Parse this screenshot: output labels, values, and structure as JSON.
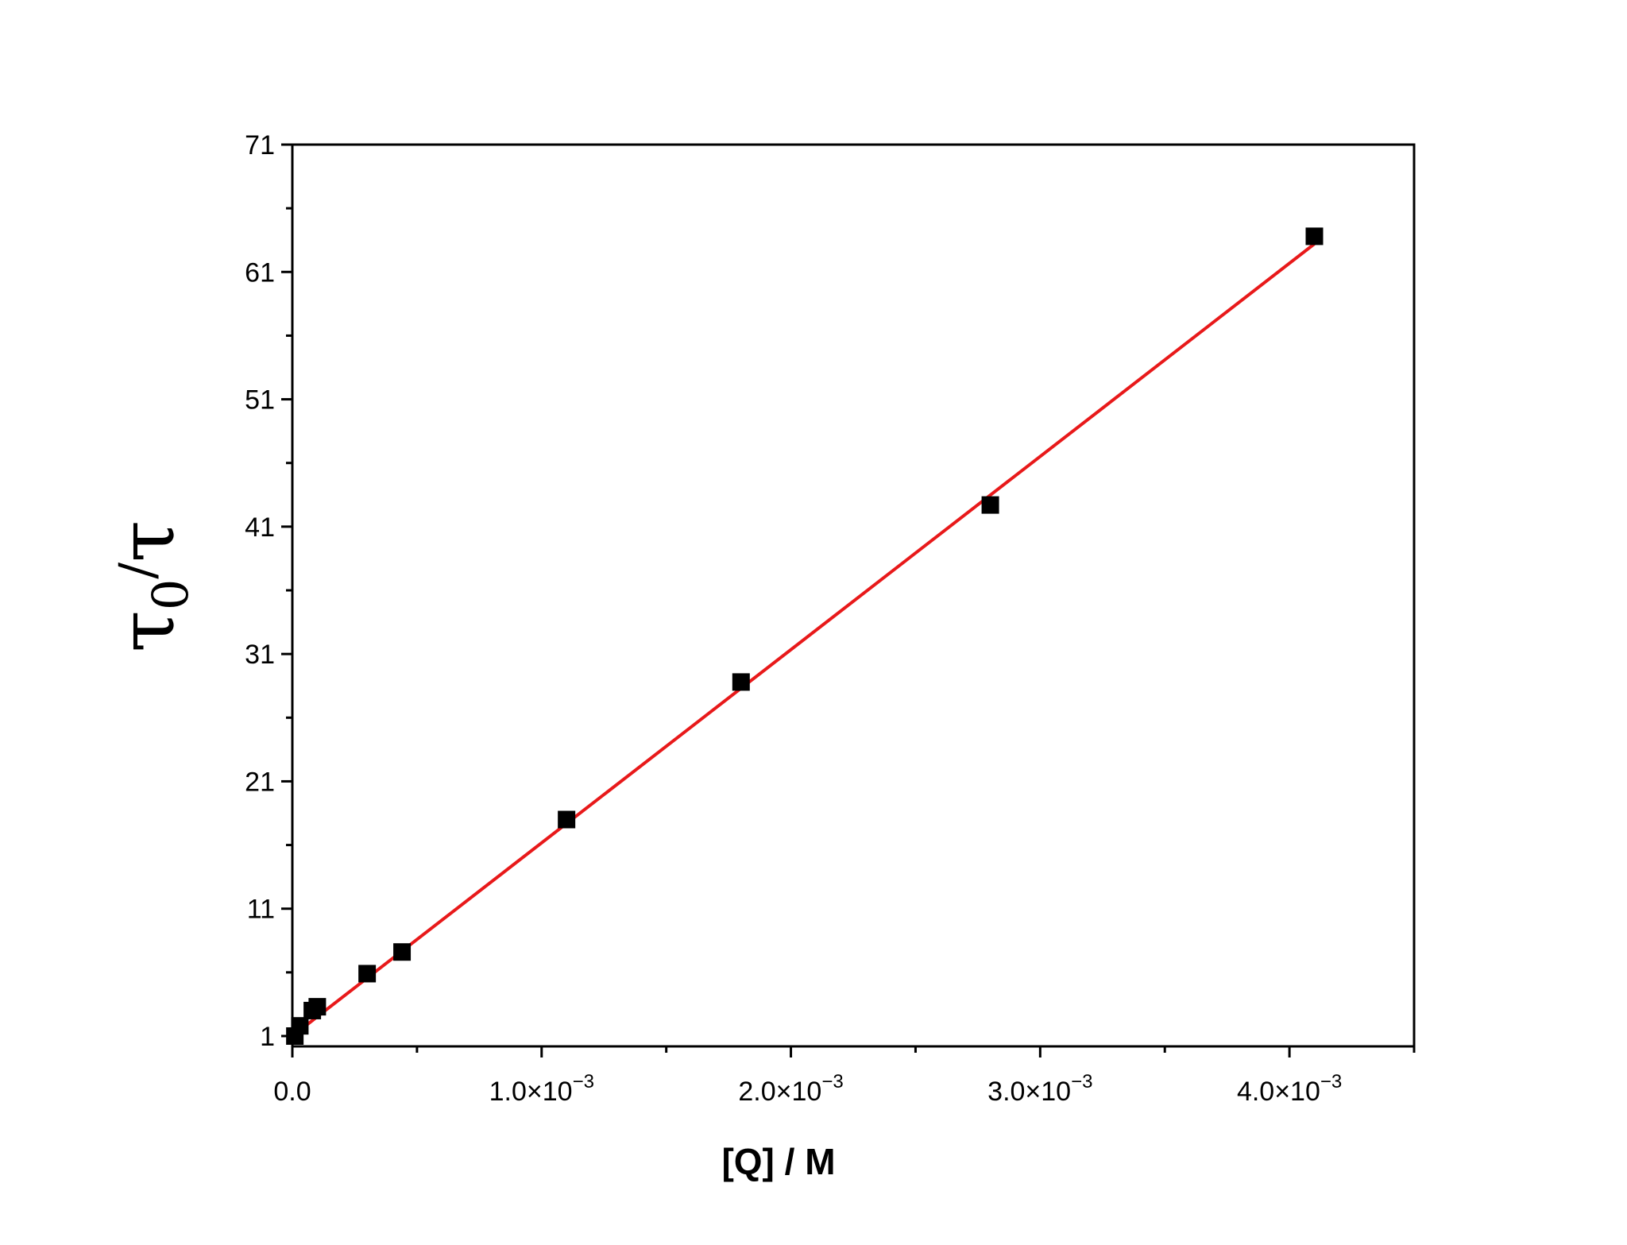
{
  "chart_data": {
    "type": "scatter",
    "xlabel": "[Q] / M",
    "ylabel": "τ0/τ",
    "ylabel_parts": {
      "main": "τ",
      "sub": "0",
      "slash": "/",
      "denom": "τ"
    },
    "xlim": [
      0,
      0.0045
    ],
    "ylim": [
      0,
      71
    ],
    "x_ticks": [
      0,
      0.001,
      0.002,
      0.003,
      0.004
    ],
    "x_tick_labels": [
      {
        "mantissa": "0.0",
        "exponent": ""
      },
      {
        "mantissa": "1.0×10",
        "exponent": "−3"
      },
      {
        "mantissa": "2.0×10",
        "exponent": "−3"
      },
      {
        "mantissa": "3.0×10",
        "exponent": "−3"
      },
      {
        "mantissa": "4.0×10",
        "exponent": "−3"
      }
    ],
    "y_ticks": [
      1,
      11,
      21,
      31,
      41,
      51,
      61,
      71
    ],
    "y_tick_labels": [
      "1",
      "11",
      "21",
      "31",
      "41",
      "51",
      "61",
      "71"
    ],
    "grid": false,
    "series": [
      {
        "type": "scatter",
        "color": "#000000",
        "marker": "square",
        "x": [
          1e-05,
          3e-05,
          8e-05,
          0.0001,
          0.0003,
          0.00044,
          0.0011,
          0.0018,
          0.0028,
          0.0041
        ],
        "y": [
          1.0,
          1.8,
          3.0,
          3.3,
          5.9,
          7.6,
          18.0,
          28.8,
          42.7,
          63.8
        ]
      },
      {
        "type": "line",
        "color": "#e8191a",
        "x": [
          0.0,
          0.0041
        ],
        "y": [
          1.0,
          63.2
        ]
      }
    ]
  }
}
